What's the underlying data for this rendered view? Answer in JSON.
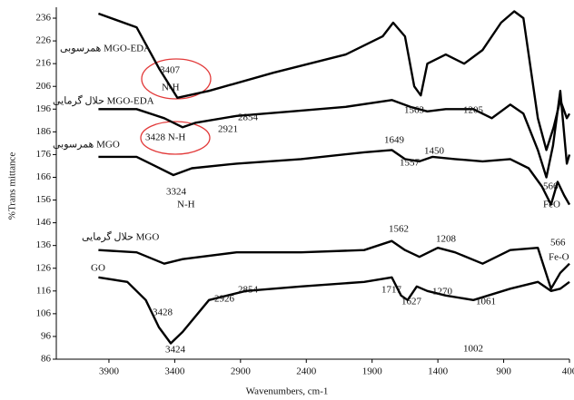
{
  "chart_data": {
    "type": "line",
    "x_label": "Wavenumbers, cm-1",
    "y_label": "%Trans mittance",
    "xlim": [
      4300,
      400
    ],
    "xticks": [
      3900,
      3400,
      2900,
      2400,
      1900,
      1400,
      900,
      400
    ],
    "x_reversed": true,
    "ylim": [
      86,
      240
    ],
    "yticks": [
      86,
      96,
      106,
      116,
      126,
      136,
      146,
      156,
      166,
      176,
      186,
      196,
      206,
      216,
      226,
      236
    ],
    "series": [
      {
        "name": "همرسوبی MGO-EDA",
        "color": "#000000",
        "x": [
          3980,
          3690,
          3520,
          3380,
          3140,
          2650,
          2100,
          1820,
          1740,
          1650,
          1580,
          1530,
          1480,
          1340,
          1200,
          1060,
          920,
          820,
          750,
          640,
          575,
          520,
          470,
          420,
          400
        ],
        "values": [
          238,
          232,
          214,
          201,
          204,
          212,
          220,
          228,
          234,
          228,
          206,
          202,
          216,
          220,
          216,
          222,
          234,
          239,
          236,
          192,
          178,
          188,
          200,
          192,
          194
        ]
      },
      {
        "name": "حلال گرمایی MGO-EDA",
        "color": "#000000",
        "x": [
          3980,
          3690,
          3480,
          3340,
          3240,
          2930,
          2510,
          2100,
          1750,
          1610,
          1480,
          1340,
          1130,
          990,
          850,
          750,
          640,
          575,
          525,
          470,
          420,
          400
        ],
        "values": [
          196,
          196,
          192,
          188,
          190,
          193,
          195,
          197,
          200,
          197,
          195,
          196,
          196,
          192,
          198,
          194,
          178,
          166,
          180,
          204,
          172,
          176
        ]
      },
      {
        "name": "همرسوبی MGO",
        "color": "#000000",
        "x": [
          3980,
          3690,
          3550,
          3410,
          3270,
          2930,
          2440,
          1960,
          1750,
          1650,
          1540,
          1440,
          1270,
          1060,
          850,
          710,
          610,
          540,
          490,
          440,
          400
        ],
        "values": [
          175,
          175,
          171,
          167,
          170,
          172,
          174,
          177,
          178,
          174,
          173,
          175,
          174,
          173,
          174,
          170,
          162,
          154,
          164,
          158,
          154
        ]
      },
      {
        "name": "حلال گرمایی MGO",
        "color": "#000000",
        "x": [
          3980,
          3690,
          3480,
          3340,
          2930,
          2440,
          1960,
          1750,
          1650,
          1540,
          1400,
          1270,
          1060,
          850,
          640,
          540,
          470,
          400
        ],
        "values": [
          134,
          133,
          128,
          130,
          133,
          133,
          134,
          138,
          134,
          131,
          135,
          133,
          128,
          134,
          135,
          117,
          124,
          128
        ]
      },
      {
        "name": "GO",
        "color": "#000000",
        "x": [
          3980,
          3760,
          3620,
          3520,
          3430,
          3340,
          3140,
          2860,
          2440,
          1960,
          1750,
          1680,
          1630,
          1560,
          1480,
          1340,
          1130,
          850,
          640,
          540,
          470,
          400
        ],
        "values": [
          122,
          120,
          112,
          100,
          93,
          98,
          112,
          116,
          118,
          120,
          122,
          114,
          112,
          118,
          116,
          114,
          112,
          117,
          120,
          116,
          117,
          120
        ]
      }
    ],
    "annotations": [
      "3407",
      "N-H",
      "3428 N-H",
      "2921",
      "2854",
      "1563",
      "1205",
      "1649",
      "1557",
      "1450",
      "3324",
      "N-H",
      "566",
      "FeO",
      "1562",
      "1208",
      "566",
      "Fe-O",
      "3428",
      "3424",
      "2926",
      "2854",
      "1717",
      "1627",
      "1270",
      "1061",
      "1002"
    ]
  }
}
